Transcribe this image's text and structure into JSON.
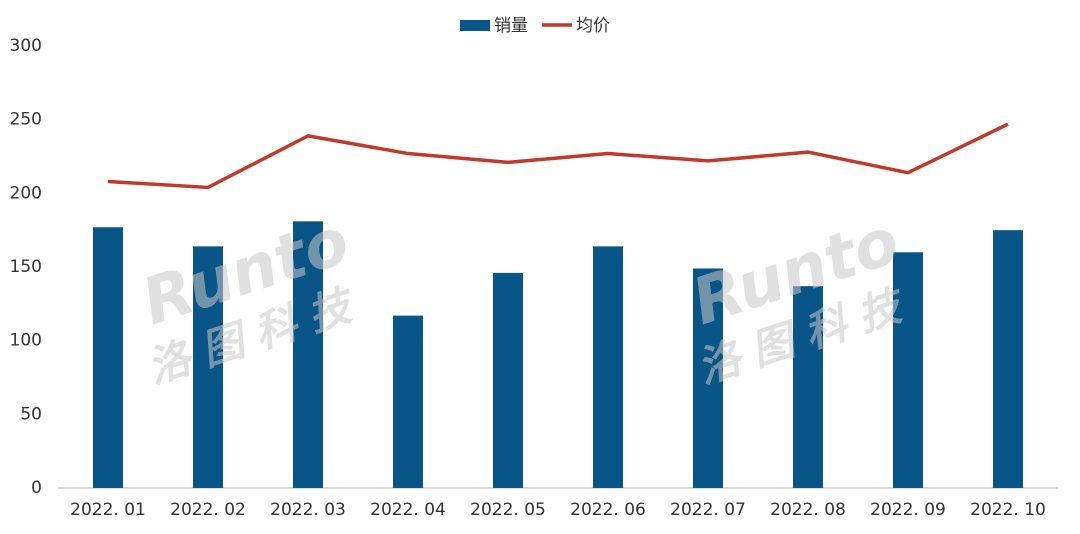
{
  "chart_data": {
    "type": "bar_line",
    "categories": [
      "2022. 01",
      "2022. 02",
      "2022. 03",
      "2022. 04",
      "2022. 05",
      "2022. 06",
      "2022. 07",
      "2022. 08",
      "2022. 09",
      "2022. 10"
    ],
    "series": [
      {
        "name": "销量",
        "type": "bar",
        "color": "#0a5587",
        "values": [
          177,
          164,
          181,
          117,
          146,
          164,
          149,
          137,
          160,
          175
        ]
      },
      {
        "name": "均价",
        "type": "line",
        "color": "#c0392b",
        "values": [
          208,
          204,
          239,
          227,
          221,
          227,
          222,
          228,
          214,
          247
        ]
      }
    ],
    "ylim": [
      0,
      300
    ],
    "yticks": [
      0,
      50,
      100,
      150,
      200,
      250,
      300
    ],
    "grid": false,
    "legend": "top",
    "watermark": {
      "brand": "Runto",
      "name": "洛图科技"
    }
  }
}
